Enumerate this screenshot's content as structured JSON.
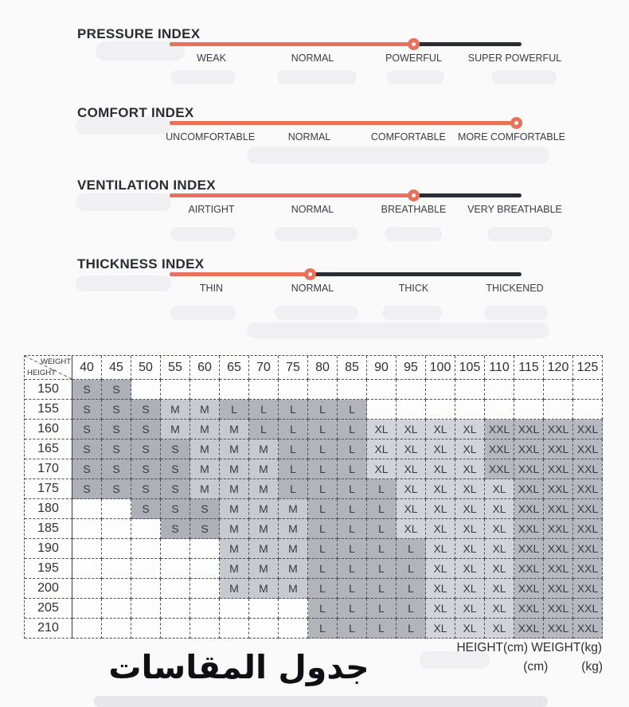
{
  "colors": {
    "accent": "#ea7159",
    "dark_track": "#2b2c34",
    "table_border": "#4d4d55",
    "cell_s": "#aeafb7",
    "cell_m": "#c8c9d1",
    "cell_l": "#b2b3bb",
    "cell_xl": "#d3d4db",
    "cell_xxl": "#b7b8c0"
  },
  "indexes": [
    {
      "title": "PRESSURE INDEX",
      "labels": [
        "WEAK",
        "NORMAL",
        "POWERFUL",
        "SUPER POWERFUL"
      ],
      "selected_label": "POWERFUL",
      "value_pct": 69.5
    },
    {
      "title": "COMFORT INDEX",
      "labels": [
        "UNCOMFORTABLE",
        "NORMAL",
        "COMFORTABLE",
        "MORE COMFORTABLE"
      ],
      "selected_label": "MORE COMFORTABLE",
      "value_pct": 98.6
    },
    {
      "title": "VENTILATION INDEX",
      "labels": [
        "AIRTIGHT",
        "NORMAL",
        "BREATHABLE",
        "VERY BREATHABLE"
      ],
      "selected_label": "BREATHABLE",
      "value_pct": 69.5
    },
    {
      "title": "THICKNESS INDEX",
      "labels": [
        "THIN",
        "NORMAL",
        "THICK",
        "THICKENED"
      ],
      "selected_label": "NORMAL",
      "value_pct": 40
    }
  ],
  "chart_data": {
    "type": "table",
    "title": "جدول المقاسات",
    "columns_label": "WEIGHT",
    "rows_label": "HEIGHT",
    "columns": [
      "40",
      "45",
      "50",
      "55",
      "60",
      "65",
      "70",
      "75",
      "80",
      "85",
      "90",
      "95",
      "100",
      "105",
      "110",
      "115",
      "120",
      "125"
    ],
    "rows": [
      "150",
      "155",
      "160",
      "165",
      "170",
      "175",
      "180",
      "185",
      "190",
      "195",
      "200",
      "205",
      "210"
    ],
    "values": [
      [
        "S",
        "S",
        "",
        "",
        "",
        "",
        "",
        "",
        "",
        "",
        "",
        "",
        "",
        "",
        "",
        "",
        "",
        ""
      ],
      [
        "S",
        "S",
        "S",
        "M",
        "M",
        "L",
        "L",
        "L",
        "L",
        "L",
        "",
        "",
        "",
        "",
        "",
        "",
        "",
        ""
      ],
      [
        "S",
        "S",
        "S",
        "M",
        "M",
        "M",
        "L",
        "L",
        "L",
        "L",
        "XL",
        "XL",
        "XL",
        "XL",
        "XXL",
        "XXL",
        "XXL",
        "XXL"
      ],
      [
        "S",
        "S",
        "S",
        "S",
        "M",
        "M",
        "M",
        "L",
        "L",
        "L",
        "XL",
        "XL",
        "XL",
        "XL",
        "XXL",
        "XXL",
        "XXL",
        "XXL"
      ],
      [
        "S",
        "S",
        "S",
        "S",
        "M",
        "M",
        "M",
        "L",
        "L",
        "L",
        "XL",
        "XL",
        "XL",
        "XL",
        "XXL",
        "XXL",
        "XXL",
        "XXL"
      ],
      [
        "S",
        "S",
        "S",
        "S",
        "M",
        "M",
        "M",
        "L",
        "L",
        "L",
        "L",
        "XL",
        "XL",
        "XL",
        "XL",
        "XXL",
        "XXL",
        "XXL"
      ],
      [
        "",
        "",
        "S",
        "S",
        "S",
        "M",
        "M",
        "M",
        "L",
        "L",
        "L",
        "XL",
        "XL",
        "XL",
        "XL",
        "XXL",
        "XXL",
        "XXL"
      ],
      [
        "",
        "",
        "",
        "S",
        "S",
        "M",
        "M",
        "M",
        "L",
        "L",
        "L",
        "XL",
        "XL",
        "XL",
        "XL",
        "XXL",
        "XXL",
        "XXL"
      ],
      [
        "",
        "",
        "",
        "",
        "",
        "M",
        "M",
        "M",
        "L",
        "L",
        "L",
        "L",
        "XL",
        "XL",
        "XL",
        "XXL",
        "XXL",
        "XXL"
      ],
      [
        "",
        "",
        "",
        "",
        "",
        "M",
        "M",
        "M",
        "L",
        "L",
        "L",
        "L",
        "XL",
        "XL",
        "XL",
        "XXL",
        "XXL",
        "XXL"
      ],
      [
        "",
        "",
        "",
        "",
        "",
        "M",
        "M",
        "M",
        "L",
        "L",
        "L",
        "L",
        "XL",
        "XL",
        "XL",
        "XXL",
        "XXL",
        "XXL"
      ],
      [
        "",
        "",
        "",
        "",
        "",
        "",
        "",
        "",
        "L",
        "L",
        "L",
        "L",
        "XL",
        "XL",
        "XL",
        "XXL",
        "XXL",
        "XXL"
      ],
      [
        "",
        "",
        "",
        "",
        "",
        "",
        "",
        "",
        "L",
        "L",
        "L",
        "L",
        "XL",
        "XL",
        "XL",
        "XXL",
        "XXL",
        "XXL"
      ]
    ]
  },
  "footer": {
    "units_line": "HEIGHT(cm) WEIGHT(kg)",
    "unit_cm": "(cm)",
    "unit_kg": "(kg)",
    "arabic_title": "جدول المقاسات"
  }
}
